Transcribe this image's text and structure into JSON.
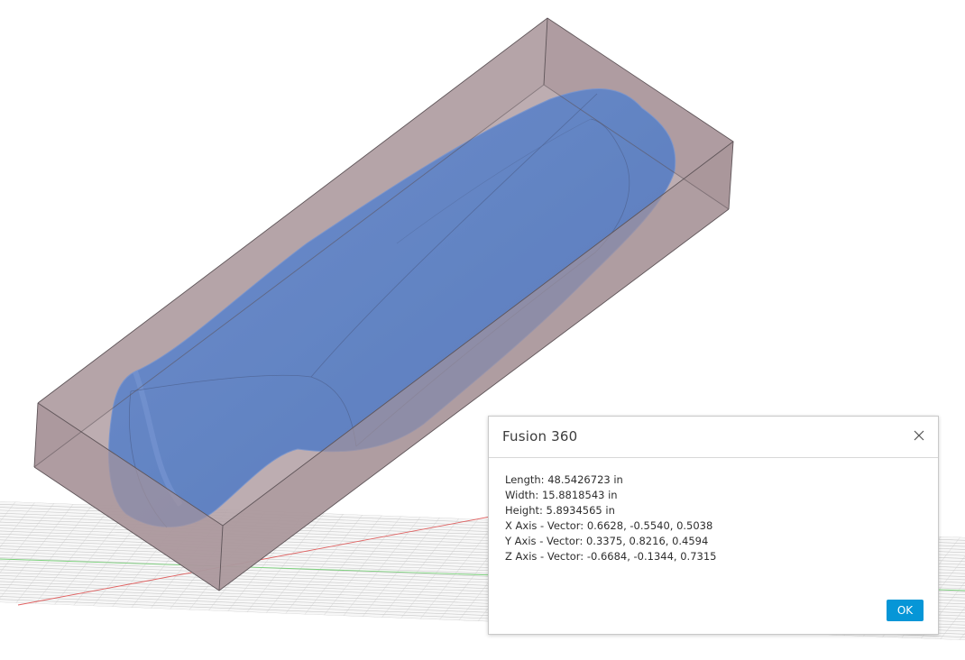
{
  "dialog": {
    "title": "Fusion 360",
    "lines": [
      "Length: 48.5426723 in",
      "Width: 15.8818543 in",
      "Height: 5.8934565 in",
      "X Axis - Vector: 0.6628, -0.5540, 0.5038",
      "Y Axis - Vector: 0.3375, 0.8216, 0.4594",
      "Z Axis - Vector: -0.6684, -0.1344, 0.7315"
    ],
    "ok_label": "OK",
    "close_icon": "close-icon"
  },
  "viewport": {
    "model_color": "#4f7fcf",
    "box_color": "#a89499",
    "grid_x_axis_color": "#e06060",
    "grid_y_axis_color": "#7ad07a"
  }
}
